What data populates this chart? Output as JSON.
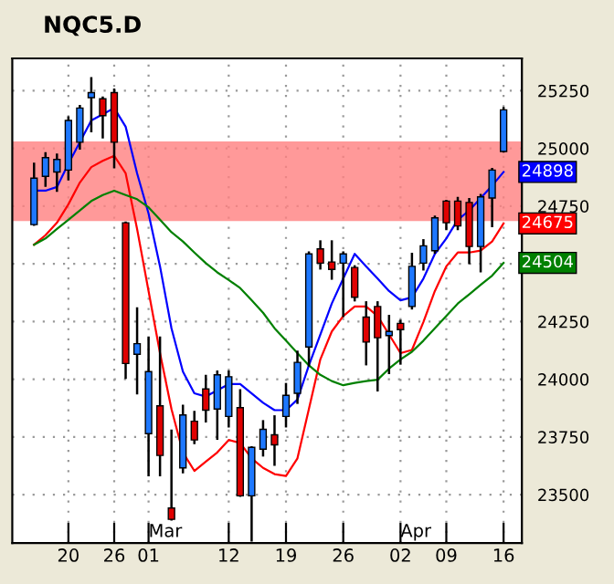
{
  "chart_data": {
    "type": "candlestick",
    "title": "NQC5.D",
    "categories": [
      null,
      null,
      null,
      "20",
      null,
      null,
      null,
      "26",
      null,
      null,
      "01",
      null,
      null,
      null,
      null,
      null,
      null,
      "12",
      null,
      null,
      null,
      null,
      "19",
      null,
      null,
      null,
      null,
      "26",
      null,
      null,
      null,
      null,
      "02",
      null,
      null,
      null,
      "09",
      null,
      null,
      null,
      null,
      "16"
    ],
    "ohlc": [
      [
        24670,
        24933,
        24670,
        24871
      ],
      [
        24879,
        24979,
        24839,
        24960
      ],
      [
        24898,
        24973,
        24817,
        24952
      ],
      [
        24906,
        25134,
        24866,
        25121
      ],
      [
        25027,
        25183,
        25000,
        25175
      ],
      [
        25220,
        25304,
        25075,
        25242
      ],
      [
        25215,
        25220,
        25048,
        25142
      ],
      [
        25242,
        25255,
        24919,
        25027
      ],
      [
        24678,
        24678,
        24006,
        24068
      ],
      [
        24108,
        24307,
        23939,
        24154
      ],
      [
        23764,
        24180,
        23584,
        24033
      ],
      [
        23885,
        24180,
        23584,
        23670
      ],
      [
        23442,
        23777,
        23393,
        23393
      ],
      [
        23616,
        23885,
        23597,
        23845
      ],
      [
        23818,
        23858,
        23724,
        23737
      ],
      [
        23958,
        24014,
        23818,
        23866
      ],
      [
        23871,
        24033,
        23742,
        24019
      ],
      [
        23839,
        24033,
        23796,
        24011
      ],
      [
        23877,
        23952,
        23495,
        23495
      ],
      [
        23495,
        23705,
        23302,
        23705
      ],
      [
        23697,
        23818,
        23670,
        23783
      ],
      [
        23759,
        23839,
        23630,
        23716
      ],
      [
        23839,
        23979,
        23796,
        23930
      ],
      [
        23939,
        24119,
        23898,
        24073
      ],
      [
        24140,
        24549,
        24060,
        24543
      ],
      [
        24565,
        24597,
        24480,
        24503
      ],
      [
        24508,
        24597,
        24436,
        24476
      ],
      [
        24503,
        24549,
        24274,
        24543
      ],
      [
        24484,
        24489,
        24342,
        24355
      ],
      [
        24269,
        24333,
        24065,
        24161
      ],
      [
        24315,
        24333,
        23952,
        24180
      ],
      [
        24189,
        24274,
        24027,
        24207
      ],
      [
        24242,
        24253,
        24068,
        24215
      ],
      [
        24315,
        24543,
        24307,
        24489
      ],
      [
        24503,
        24602,
        24476,
        24578
      ],
      [
        24557,
        24704,
        24549,
        24699
      ],
      [
        24772,
        24772,
        24651,
        24678
      ],
      [
        24772,
        24785,
        24651,
        24664
      ],
      [
        24766,
        24780,
        24503,
        24575
      ],
      [
        24575,
        24798,
        24468,
        24790
      ],
      [
        24785,
        24911,
        24664,
        24906
      ],
      [
        24987,
        25175,
        24987,
        25167
      ]
    ],
    "colors": [
      "#1e78ff",
      "#1e78ff",
      "#1e78ff",
      "#1e78ff",
      "#1e78ff",
      "#1e78ff",
      "#e00000",
      "#e00000",
      "#e00000",
      "#1e78ff",
      "#1e78ff",
      "#e00000",
      "#e00000",
      "#1e78ff",
      "#e00000",
      "#e00000",
      "#1e78ff",
      "#1e78ff",
      "#e00000",
      "#1e78ff",
      "#1e78ff",
      "#e00000",
      "#1e78ff",
      "#1e78ff",
      "#1e78ff",
      "#e00000",
      "#e00000",
      "#1e78ff",
      "#e00000",
      "#e00000",
      "#e00000",
      "#1e78ff",
      "#e00000",
      "#1e78ff",
      "#1e78ff",
      "#1e78ff",
      "#e00000",
      "#e00000",
      "#e00000",
      "#1e78ff",
      "#1e78ff",
      "#1e78ff"
    ],
    "series": [
      {
        "type": "line",
        "color": "#0000ff",
        "values": [
          24817,
          24817,
          24833,
          24933,
          25027,
          25121,
          25148,
          25175,
          25094,
          24892,
          24718,
          24489,
          24221,
          24033,
          23939,
          23925,
          23952,
          23979,
          23979,
          23939,
          23898,
          23866,
          23866,
          23912,
          24060,
          24194,
          24328,
          24436,
          24543,
          24489,
          24436,
          24382,
          24342,
          24355,
          24436,
          24543,
          24610,
          24691,
          24731,
          24785,
          24839,
          24898
        ],
        "value_labels": [
          null,
          null,
          null,
          null,
          null,
          null,
          null,
          null,
          null,
          null,
          null,
          null,
          null,
          null,
          null,
          null,
          null,
          null,
          null,
          null,
          null,
          null,
          null,
          null,
          null,
          null,
          null,
          null,
          null,
          null,
          null,
          null,
          null,
          null,
          null,
          null,
          null,
          null,
          null,
          null,
          null,
          "24898"
        ]
      },
      {
        "type": "line",
        "color": "#ff0000",
        "values": [
          24583,
          24624,
          24678,
          24758,
          24852,
          24919,
          24946,
          24968,
          24892,
          24651,
          24382,
          24113,
          23871,
          23683,
          23603,
          23643,
          23683,
          23737,
          23724,
          23657,
          23616,
          23589,
          23581,
          23657,
          23871,
          24086,
          24207,
          24274,
          24315,
          24315,
          24274,
          24194,
          24113,
          24127,
          24248,
          24382,
          24489,
          24549,
          24549,
          24557,
          24597,
          24675
        ],
        "value_labels": [
          null,
          null,
          null,
          null,
          null,
          null,
          null,
          null,
          null,
          null,
          null,
          null,
          null,
          null,
          null,
          null,
          null,
          null,
          null,
          null,
          null,
          null,
          null,
          null,
          null,
          null,
          null,
          null,
          null,
          null,
          null,
          null,
          null,
          null,
          null,
          null,
          null,
          null,
          null,
          null,
          null,
          "24675"
        ]
      },
      {
        "type": "line",
        "color": "#008000",
        "values": [
          24583,
          24610,
          24651,
          24691,
          24731,
          24772,
          24798,
          24817,
          24798,
          24780,
          24745,
          24691,
          24637,
          24597,
          24549,
          24503,
          24463,
          24430,
          24395,
          24342,
          24288,
          24221,
          24167,
          24113,
          24060,
          24019,
          23992,
          23974,
          23984,
          23992,
          23998,
          24046,
          24086,
          24119,
          24167,
          24221,
          24274,
          24328,
          24368,
          24409,
          24449,
          24504
        ],
        "value_labels": [
          null,
          null,
          null,
          null,
          null,
          null,
          null,
          null,
          null,
          null,
          null,
          null,
          null,
          null,
          null,
          null,
          null,
          null,
          null,
          null,
          null,
          null,
          null,
          null,
          null,
          null,
          null,
          null,
          null,
          null,
          null,
          null,
          null,
          null,
          null,
          null,
          null,
          null,
          null,
          null,
          null,
          "24504"
        ]
      }
    ],
    "ylim": [
      23290,
      25390
    ],
    "yticks": [
      23500,
      23750,
      24000,
      24250,
      {
        "value": 24500,
        "label": null
      },
      24750,
      25000,
      25250
    ],
    "bands": [
      {
        "axis": "y",
        "from": 24685,
        "to": 25030,
        "color": "#ff8080"
      }
    ],
    "annotations": [
      "Mar",
      "Apr"
    ],
    "grid": true,
    "legend": false
  }
}
